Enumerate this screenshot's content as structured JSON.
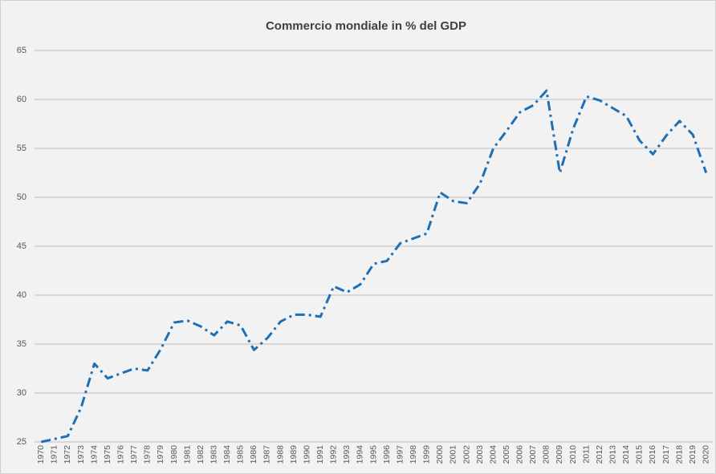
{
  "chart_data": {
    "type": "line",
    "title": "Commercio mondiale in % del GDP",
    "categories": [
      "1970",
      "1971",
      "1972",
      "1973",
      "1974",
      "1975",
      "1976",
      "1977",
      "1978",
      "1979",
      "1980",
      "1981",
      "1982",
      "1983",
      "1984",
      "1985",
      "1986",
      "1987",
      "1988",
      "1989",
      "1990",
      "1991",
      "1992",
      "1993",
      "1994",
      "1995",
      "1996",
      "1997",
      "1998",
      "1999",
      "2000",
      "2001",
      "2002",
      "2003",
      "2004",
      "2005",
      "2006",
      "2007",
      "2008",
      "2009",
      "2010",
      "2011",
      "2012",
      "2013",
      "2014",
      "2015",
      "2016",
      "2017",
      "2018",
      "2019",
      "2020"
    ],
    "series": [
      {
        "color": "#1f6fb4",
        "values": [
          25.0,
          25.3,
          25.6,
          28.5,
          33.0,
          31.5,
          32.0,
          32.5,
          32.3,
          34.5,
          37.2,
          37.4,
          36.8,
          35.9,
          37.3,
          36.9,
          34.4,
          35.6,
          37.3,
          38.0,
          38.0,
          37.8,
          40.9,
          40.3,
          41.1,
          43.2,
          43.5,
          45.3,
          45.8,
          46.3,
          50.5,
          49.6,
          49.4,
          51.4,
          55.0,
          56.8,
          58.7,
          59.4,
          60.9,
          52.5,
          57.0,
          60.3,
          59.9,
          59.1,
          58.3,
          55.8,
          54.4,
          56.3,
          57.8,
          56.4,
          52.5
        ]
      }
    ],
    "ylim": [
      25,
      65
    ],
    "yticks": [
      25,
      30,
      35,
      40,
      45,
      50,
      55,
      60,
      65
    ],
    "grid": true
  }
}
